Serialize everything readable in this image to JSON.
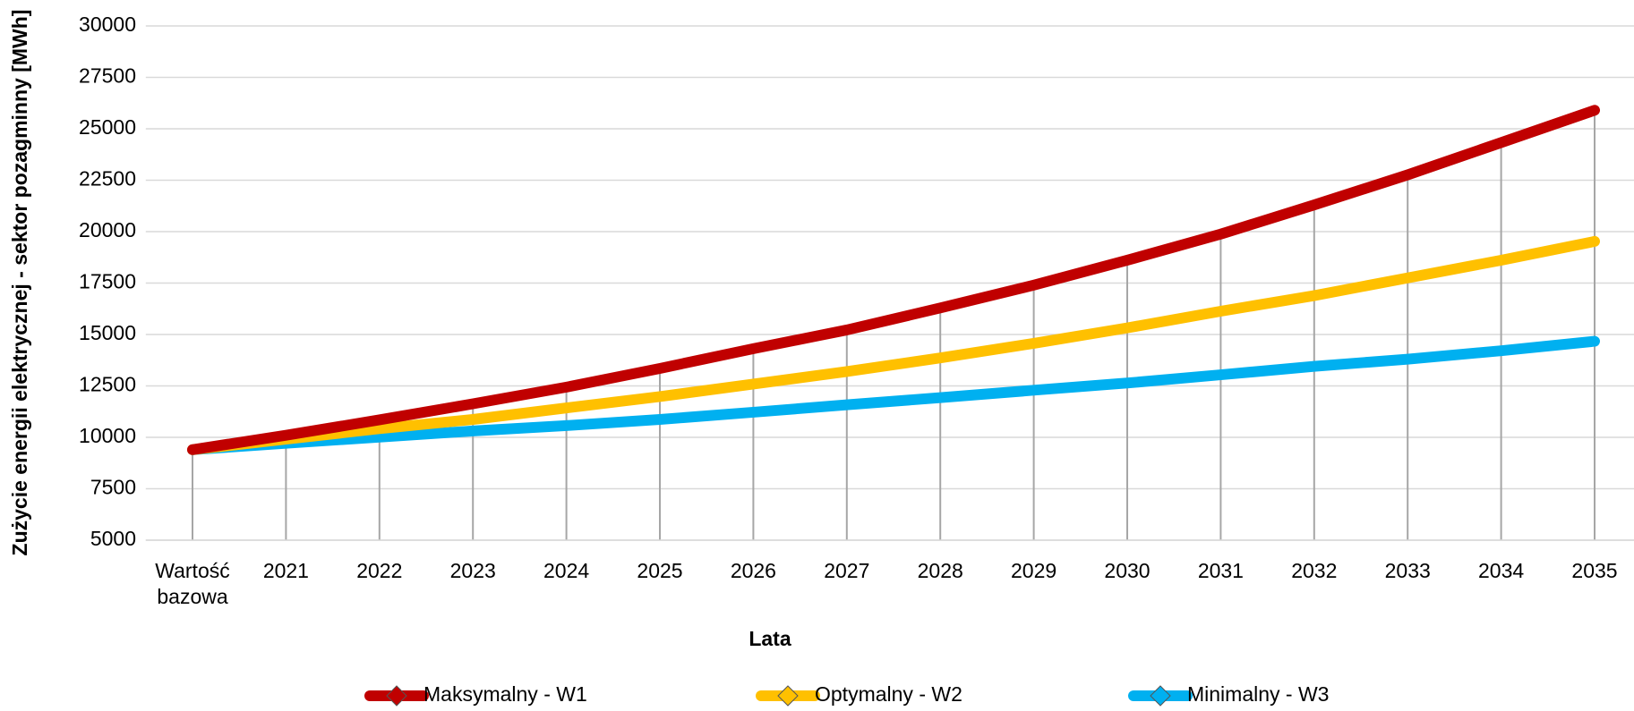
{
  "chart_data": {
    "type": "line",
    "x_label": "Lata",
    "y_label": "Zużycie energii elektrycznej - sektor pozagminny [MWh]",
    "categories": [
      "Wartość bazowa",
      "2021",
      "2022",
      "2023",
      "2024",
      "2025",
      "2026",
      "2027",
      "2028",
      "2029",
      "2030",
      "2031",
      "2032",
      "2033",
      "2034",
      "2035"
    ],
    "series": [
      {
        "name": "Maksymalny - W1",
        "color": "#c00000",
        "values": [
          9400,
          10100,
          10850,
          11630,
          12440,
          13350,
          14310,
          15220,
          16290,
          17400,
          18610,
          19880,
          21300,
          22760,
          24330,
          25900
        ]
      },
      {
        "name": "Optymalny - W2",
        "color": "#ffc000",
        "values": [
          9400,
          9910,
          10420,
          10870,
          11430,
          11980,
          12590,
          13200,
          13860,
          14570,
          15320,
          16130,
          16890,
          17750,
          18610,
          19525
        ]
      },
      {
        "name": "Minimalny - W3",
        "color": "#00b0f0",
        "values": [
          9400,
          9710,
          10010,
          10310,
          10570,
          10870,
          11220,
          11580,
          11930,
          12290,
          12640,
          13040,
          13450,
          13800,
          14210,
          14670
        ]
      }
    ],
    "ylim": [
      5000,
      30000
    ],
    "yticks": [
      5000,
      7500,
      10000,
      12500,
      15000,
      17500,
      20000,
      22500,
      25000,
      27500,
      30000
    ],
    "grid": true,
    "legend": "bottom"
  }
}
